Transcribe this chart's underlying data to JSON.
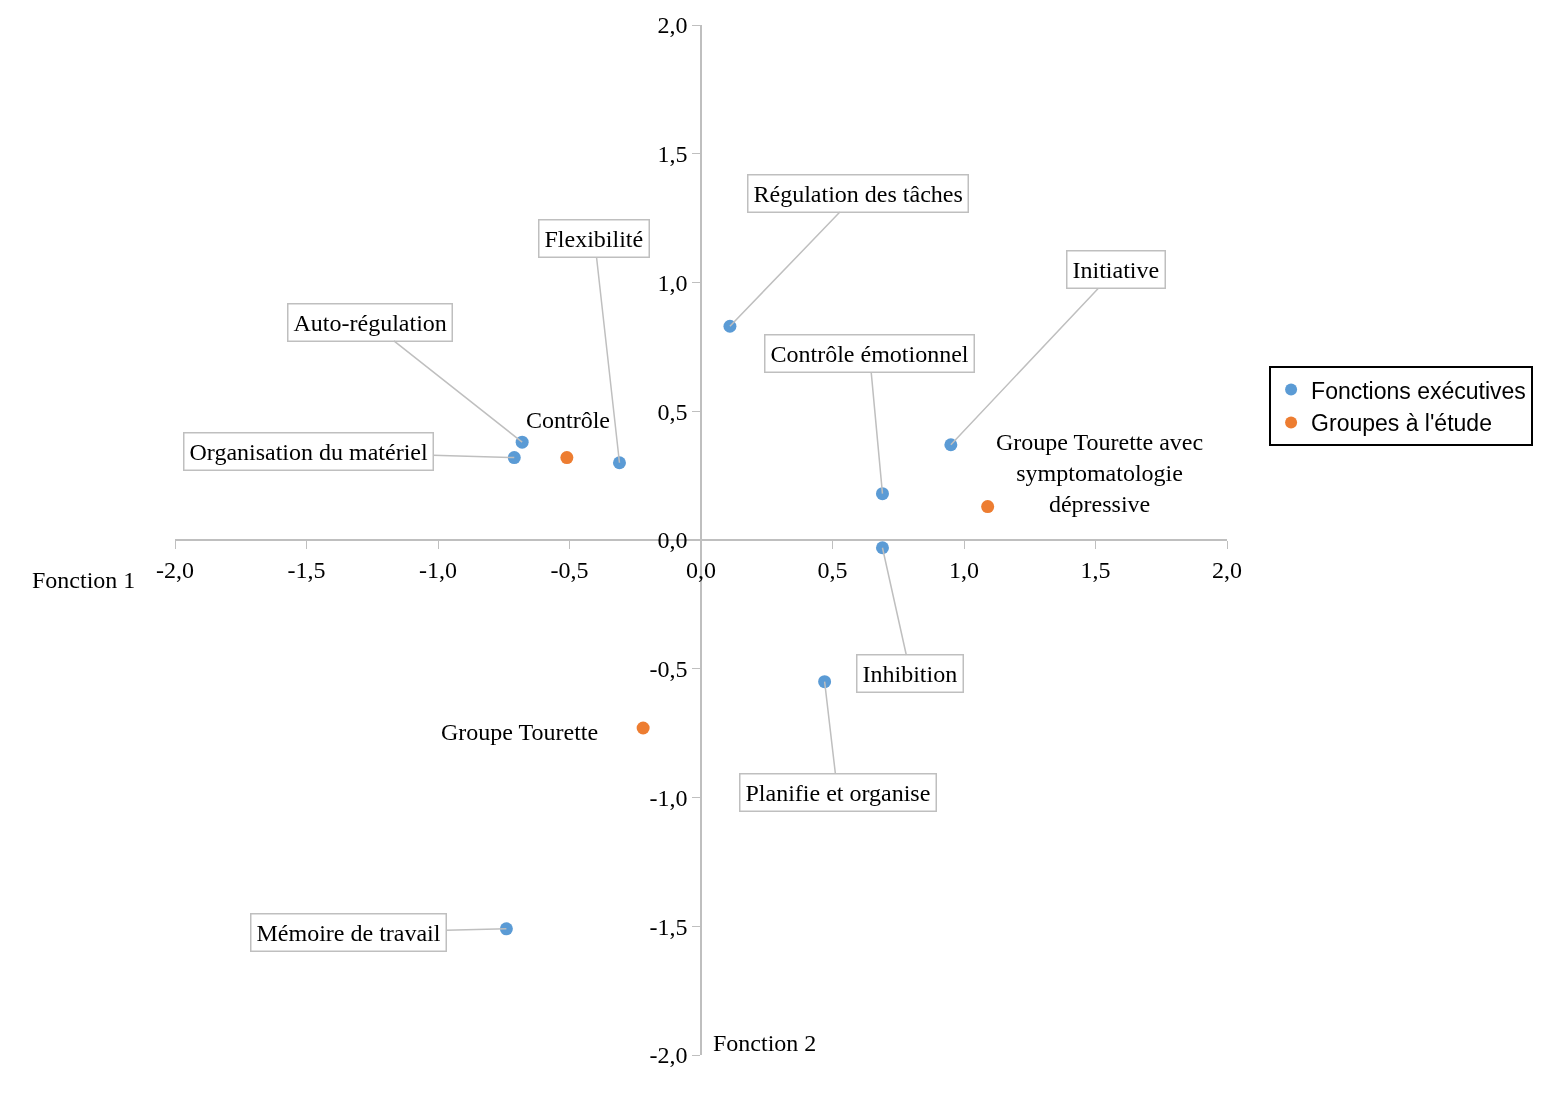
{
  "chart_data": {
    "type": "scatter",
    "xlabel": "Fonction 1",
    "ylabel": "Fonction 2",
    "xlim": [
      -2.0,
      2.0
    ],
    "ylim": [
      -2.0,
      2.0
    ],
    "xticks": [
      {
        "value": -2.0,
        "label": "-2,0"
      },
      {
        "value": -1.5,
        "label": "-1,5"
      },
      {
        "value": -1.0,
        "label": "-1,0"
      },
      {
        "value": -0.5,
        "label": "-0,5"
      },
      {
        "value": 0.0,
        "label": "0,0"
      },
      {
        "value": 0.5,
        "label": "0,5"
      },
      {
        "value": 1.0,
        "label": "1,0"
      },
      {
        "value": 1.5,
        "label": "1,5"
      },
      {
        "value": 2.0,
        "label": "2,0"
      }
    ],
    "yticks": [
      {
        "value": -2.0,
        "label": "-2,0"
      },
      {
        "value": -1.5,
        "label": "-1,5"
      },
      {
        "value": -1.0,
        "label": "-1,0"
      },
      {
        "value": -0.5,
        "label": "-0,5"
      },
      {
        "value": 0.0,
        "label": "0,0"
      },
      {
        "value": 0.5,
        "label": "0,5"
      },
      {
        "value": 1.0,
        "label": "1,0"
      },
      {
        "value": 1.5,
        "label": "1,5"
      },
      {
        "value": 2.0,
        "label": "2,0"
      }
    ],
    "legend": "right",
    "marker": "circle",
    "series": [
      {
        "name": "Fonctions exécutives",
        "color": "#5b9bd5",
        "x": [
          0.11,
          -0.31,
          -0.68,
          -0.71,
          0.69,
          0.95,
          0.69,
          0.47,
          -0.74
        ],
        "values": [
          0.83,
          0.3,
          0.38,
          0.32,
          0.18,
          0.37,
          -0.03,
          -0.55,
          -1.51
        ]
      },
      {
        "name": "Groupes à l'étude",
        "color": "#ed7d31",
        "x": [
          -0.51,
          -0.22,
          1.09
        ],
        "values": [
          0.32,
          -0.73,
          0.13
        ]
      }
    ],
    "annotations": [
      {
        "text": "Régulation des tâches",
        "x": 0.11,
        "y": 0.83
      },
      {
        "text": "Flexibilité",
        "x": -0.31,
        "y": 0.3
      },
      {
        "text": "Auto-régulation",
        "x": -0.68,
        "y": 0.38
      },
      {
        "text": "Organisation du matériel",
        "x": -0.71,
        "y": 0.32
      },
      {
        "text": "Contrôle émotionnel",
        "x": 0.69,
        "y": 0.18
      },
      {
        "text": "Initiative",
        "x": 0.95,
        "y": 0.37
      },
      {
        "text": "Inhibition",
        "x": 0.69,
        "y": -0.03
      },
      {
        "text": "Planifie et organise",
        "x": 0.47,
        "y": -0.55
      },
      {
        "text": "Mémoire de travail",
        "x": -0.74,
        "y": -1.51
      },
      {
        "text": "Contrôle",
        "x": -0.51,
        "y": 0.32
      },
      {
        "text": "Groupe Tourette",
        "x": -0.22,
        "y": -0.73
      },
      {
        "text": "Groupe Tourette avec symptomatologie dépressive",
        "x": 1.09,
        "y": 0.13
      }
    ]
  }
}
